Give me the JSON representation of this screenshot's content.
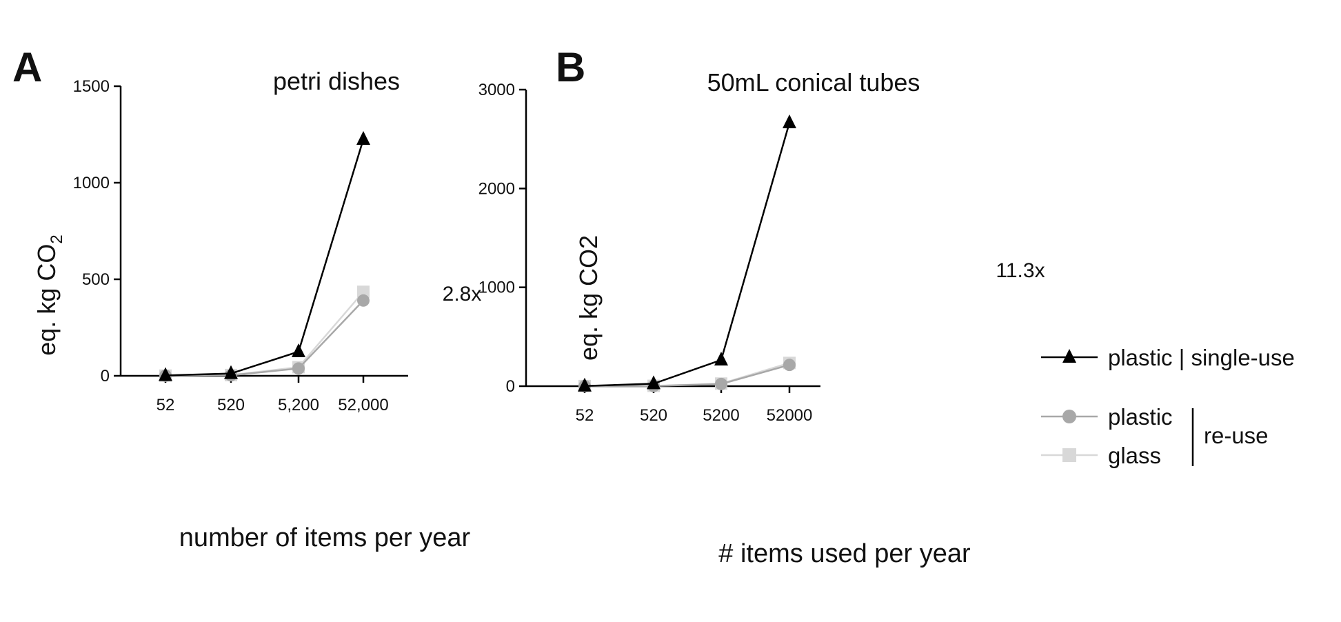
{
  "colors": {
    "single_use": "#000000",
    "plastic_reuse": "#a8a8a8",
    "glass_reuse": "#d8d8d8"
  },
  "legend": {
    "single_use": "plastic | single-use",
    "plastic": "plastic",
    "glass": "glass",
    "reuse_group": "re-use"
  },
  "chart_data": [
    {
      "type": "line",
      "panel": "A",
      "title": "petri dishes",
      "xlabel": "number of items per year",
      "ylabel": "eq. kg CO",
      "ylabel_sub": "2",
      "categories": [
        "52",
        "520",
        "5,200",
        "52,000"
      ],
      "ylim": [
        0,
        1500
      ],
      "yticks": [
        0,
        500,
        1000,
        1500
      ],
      "annotation": "2.8x",
      "series": [
        {
          "name": "plastic | single-use",
          "marker": "triangle",
          "values": [
            2,
            12,
            125,
            1225
          ]
        },
        {
          "name": "plastic",
          "marker": "circle",
          "values": [
            1,
            3,
            38,
            390
          ]
        },
        {
          "name": "glass",
          "marker": "square",
          "values": [
            1,
            4,
            45,
            435
          ]
        }
      ]
    },
    {
      "type": "line",
      "panel": "B",
      "title": "50mL conical tubes",
      "xlabel": "# items used per year",
      "ylabel": "eq. kg CO2",
      "categories": [
        "52",
        "520",
        "5200",
        "52000"
      ],
      "ylim": [
        0,
        3000
      ],
      "yticks": [
        0,
        1000,
        2000,
        3000
      ],
      "annotation": "11.3x",
      "series": [
        {
          "name": "plastic | single-use",
          "marker": "triangle",
          "values": [
            2,
            25,
            265,
            2665
          ]
        },
        {
          "name": "plastic",
          "marker": "circle",
          "values": [
            1,
            2,
            22,
            215
          ]
        },
        {
          "name": "glass",
          "marker": "square",
          "values": [
            1,
            3,
            26,
            235
          ]
        }
      ]
    }
  ]
}
